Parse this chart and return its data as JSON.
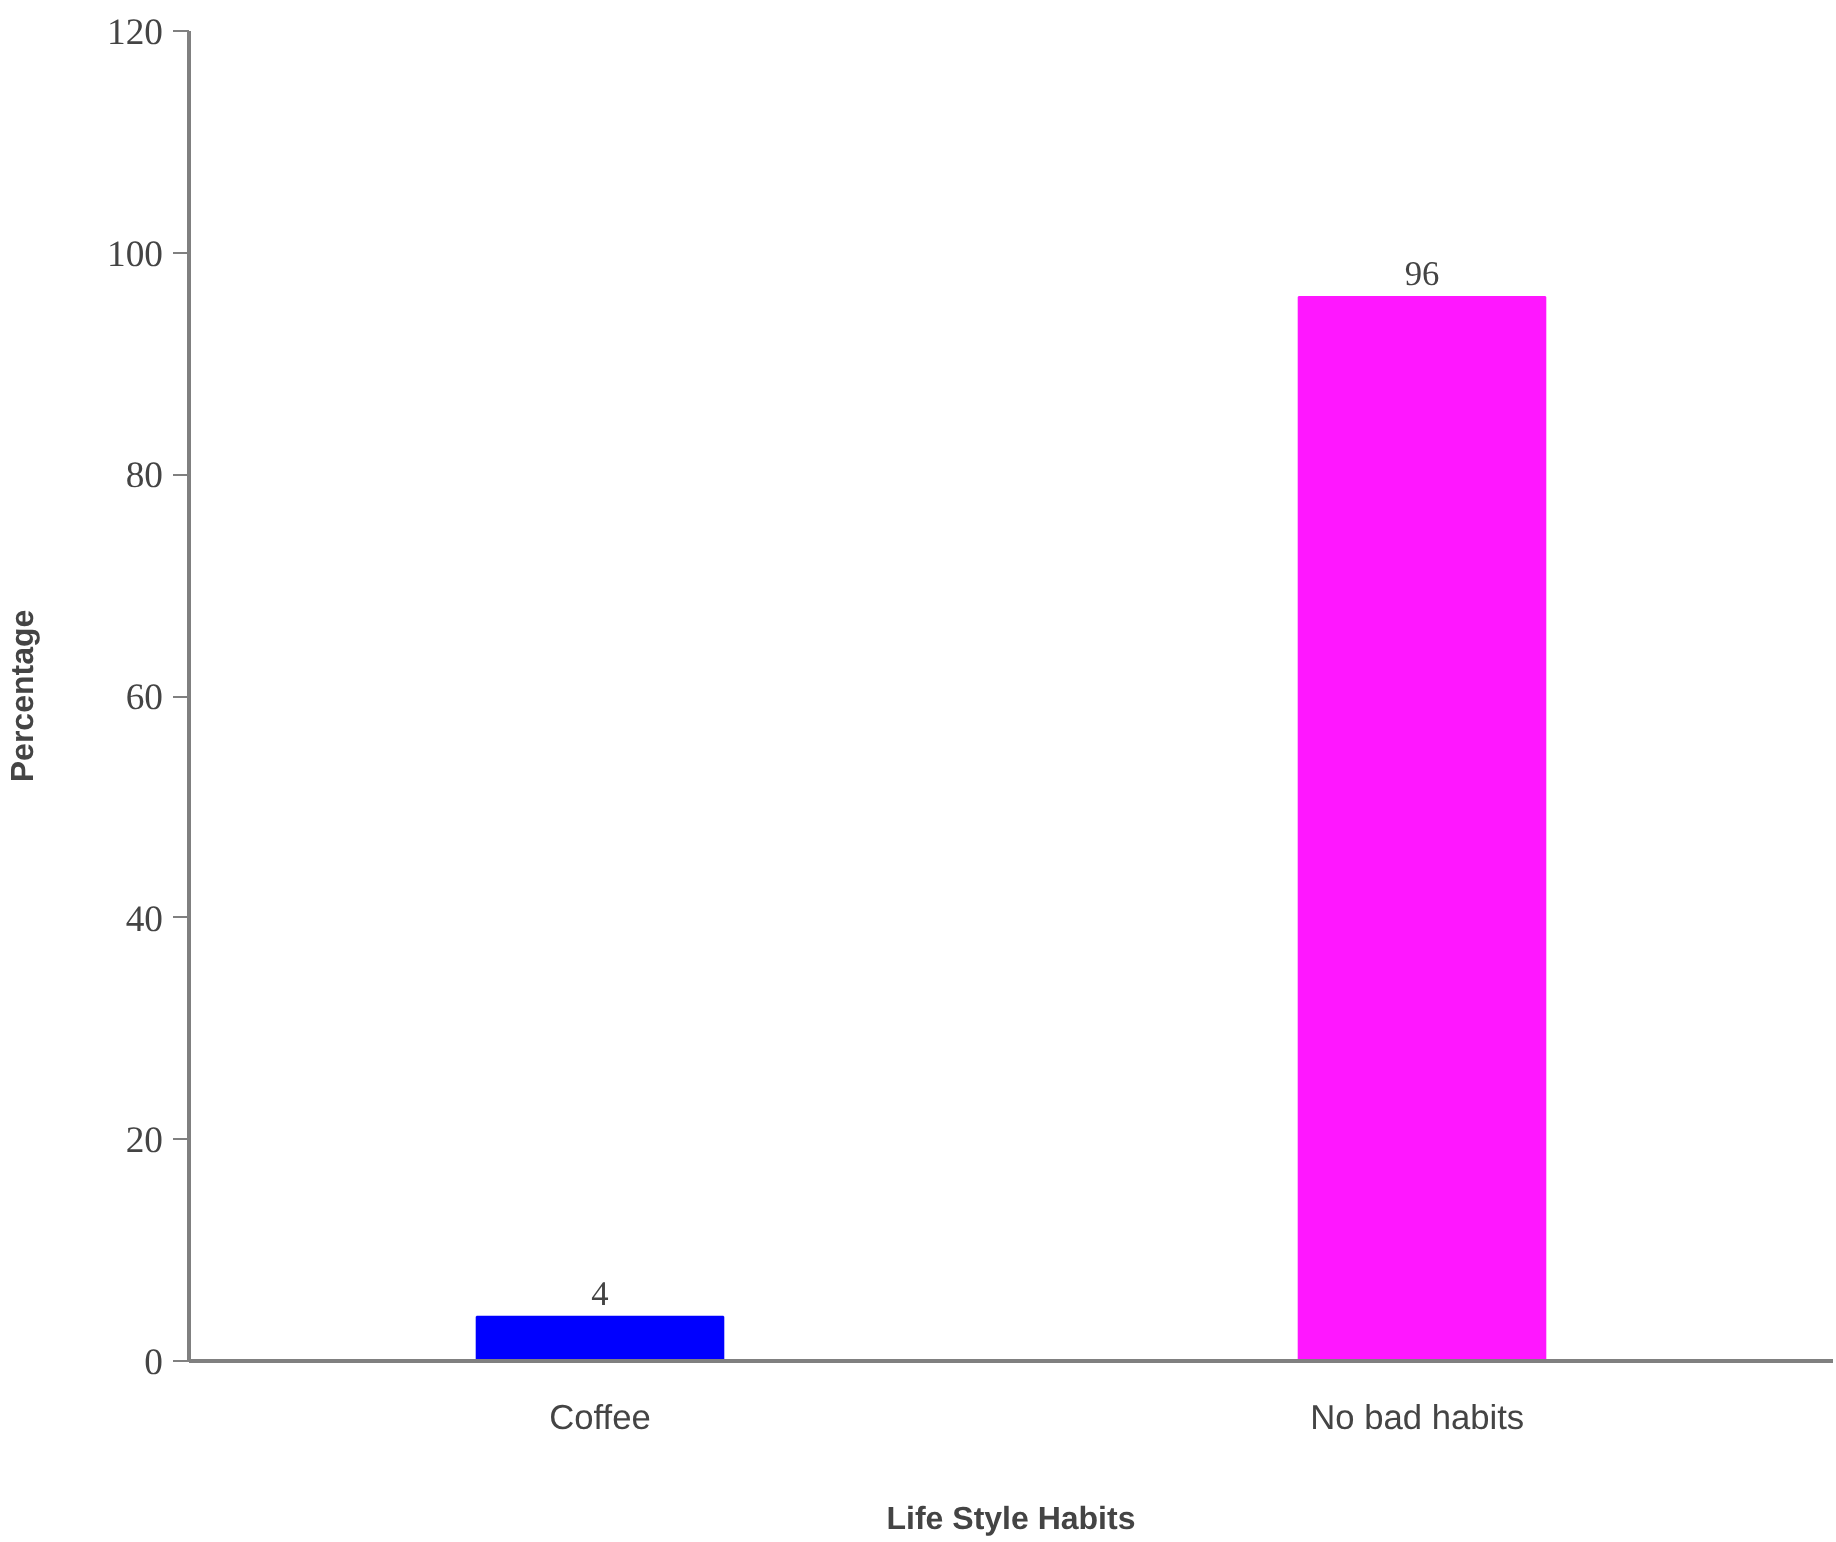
{
  "chart_data": {
    "type": "bar",
    "xlabel": "Life Style Habits",
    "ylabel": "Percentage",
    "categories": [
      "Coffee",
      "No  bad habits"
    ],
    "values": [
      4,
      96
    ],
    "colors": [
      "#0000ff",
      "#ff17ff"
    ],
    "ylim": [
      0,
      120
    ],
    "yticks": [
      0,
      20,
      40,
      60,
      80,
      100,
      120
    ],
    "grid": false,
    "data_labels": true
  }
}
